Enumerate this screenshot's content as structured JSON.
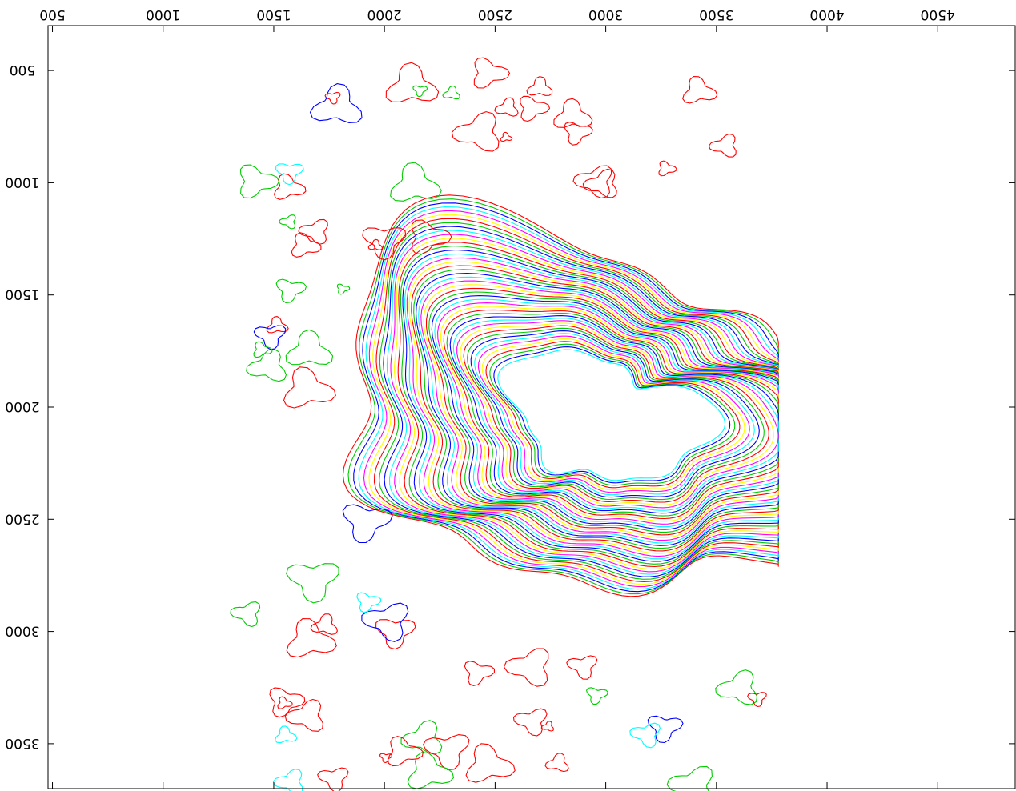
{
  "chart_data": {
    "type": "contour",
    "title": "",
    "xlabel": "",
    "ylabel": "",
    "xlim": [
      480,
      4850
    ],
    "ylim": [
      3700,
      300
    ],
    "x_axis_position": "top",
    "y_axis_inverted": true,
    "x_ticks": [
      {
        "value": 500,
        "label": "500"
      },
      {
        "value": 1000,
        "label": "1000"
      },
      {
        "value": 1500,
        "label": "1500"
      },
      {
        "value": 2000,
        "label": "2000"
      },
      {
        "value": 2500,
        "label": "2500"
      },
      {
        "value": 3000,
        "label": "3000"
      },
      {
        "value": 3500,
        "label": "3500"
      },
      {
        "value": 4000,
        "label": "4000"
      },
      {
        "value": 4500,
        "label": "4500"
      }
    ],
    "y_ticks": [
      {
        "value": 500,
        "label": "500"
      },
      {
        "value": 1000,
        "label": "1000"
      },
      {
        "value": 1500,
        "label": "1500"
      },
      {
        "value": 2000,
        "label": "2000"
      },
      {
        "value": 2500,
        "label": "2500"
      },
      {
        "value": 3000,
        "label": "3000"
      },
      {
        "value": 3500,
        "label": "3500"
      }
    ],
    "grid": false,
    "legend": "none",
    "data_extent": {
      "x": [
        1360,
        3780
      ],
      "y": [
        500,
        3700
      ]
    },
    "level_colors": [
      "#ff0000",
      "#00cc00",
      "#0000ff",
      "#00ffff",
      "#ff00ff",
      "#ffff00"
    ],
    "core_center": {
      "x": 3000,
      "y": 2050
    },
    "contour_count": 46
  }
}
